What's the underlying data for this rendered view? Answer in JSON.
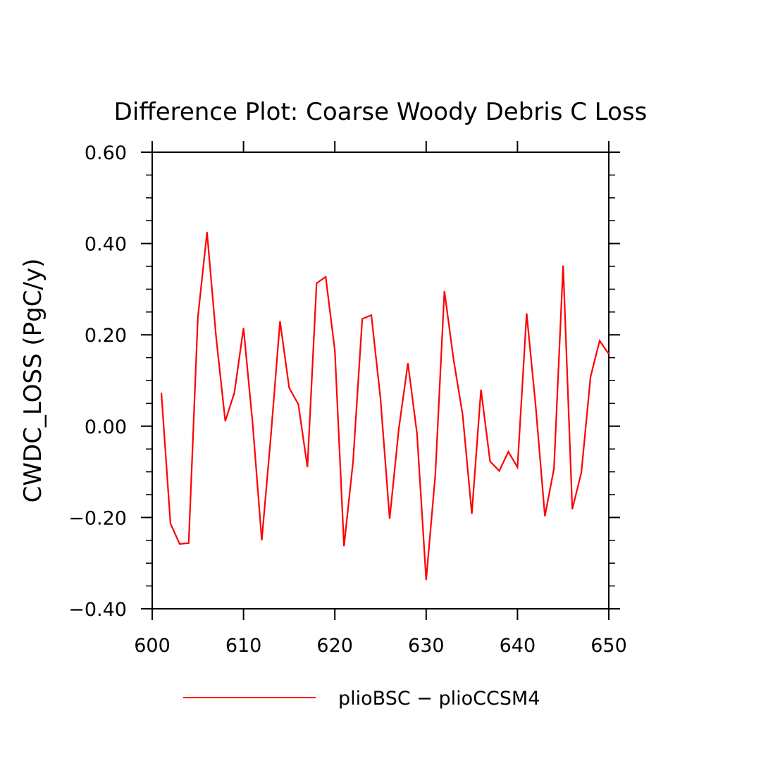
{
  "chart_data": {
    "type": "line",
    "title": "Difference Plot: Coarse Woody Debris C Loss",
    "xlabel": "",
    "ylabel": "CWDC_LOSS  (PgC/y)",
    "xlim": [
      600,
      650
    ],
    "ylim": [
      -0.4,
      0.6
    ],
    "x_ticks": [
      600,
      610,
      620,
      630,
      640,
      650
    ],
    "x_tick_labels": [
      "600",
      "610",
      "620",
      "630",
      "640",
      "650"
    ],
    "y_ticks": [
      -0.4,
      -0.2,
      0.0,
      0.2,
      0.4,
      0.6
    ],
    "y_tick_labels": [
      "−0.40",
      "−0.20",
      "0.00",
      "0.20",
      "0.40",
      "0.60"
    ],
    "grid": false,
    "legend": "bottom",
    "series": [
      {
        "name": "plioBSC − plioCCSM4",
        "color": "#ff0000",
        "x": [
          601,
          602,
          603,
          604,
          605,
          606,
          607,
          608,
          609,
          610,
          611,
          612,
          613,
          614,
          615,
          616,
          617,
          618,
          619,
          620,
          621,
          622,
          623,
          624,
          625,
          626,
          627,
          628,
          629,
          630,
          631,
          632,
          633,
          634,
          635,
          636,
          637,
          638,
          639,
          640,
          641,
          642,
          643,
          644,
          645,
          646,
          647,
          648,
          649,
          650
        ],
        "values": [
          0.073,
          -0.213,
          -0.258,
          -0.256,
          0.238,
          0.425,
          0.195,
          0.011,
          0.073,
          0.215,
          0.005,
          -0.25,
          -0.02,
          0.23,
          0.084,
          0.048,
          -0.09,
          0.313,
          0.327,
          0.166,
          -0.263,
          -0.077,
          0.235,
          0.243,
          0.06,
          -0.203,
          -0.007,
          0.138,
          -0.016,
          -0.337,
          -0.107,
          0.296,
          0.146,
          0.025,
          -0.192,
          0.08,
          -0.077,
          -0.098,
          -0.056,
          -0.09,
          0.247,
          0.043,
          -0.197,
          -0.093,
          0.352,
          -0.182,
          -0.101,
          0.108,
          0.187,
          0.158
        ]
      }
    ]
  }
}
